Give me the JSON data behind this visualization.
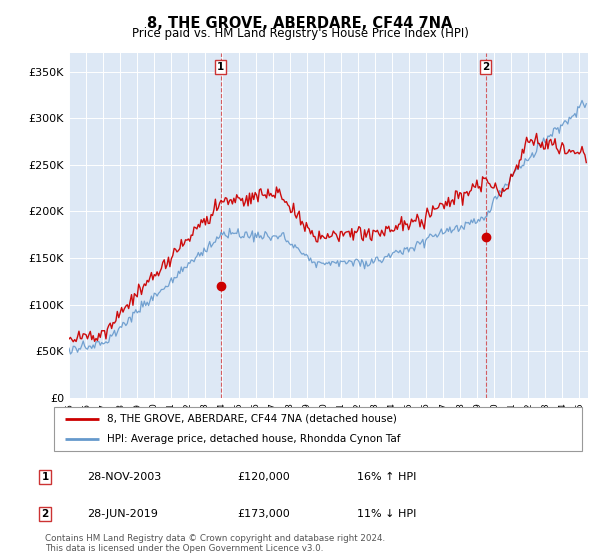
{
  "title": "8, THE GROVE, ABERDARE, CF44 7NA",
  "subtitle": "Price paid vs. HM Land Registry's House Price Index (HPI)",
  "ylabel_ticks": [
    "£0",
    "£50K",
    "£100K",
    "£150K",
    "£200K",
    "£250K",
    "£300K",
    "£350K"
  ],
  "ytick_values": [
    0,
    50000,
    100000,
    150000,
    200000,
    250000,
    300000,
    350000
  ],
  "ylim": [
    0,
    370000
  ],
  "xlim_start": 1995.0,
  "xlim_end": 2025.5,
  "sale1_date": 2003.91,
  "sale1_price": 120000,
  "sale1_label": "1",
  "sale2_date": 2019.49,
  "sale2_price": 173000,
  "sale2_label": "2",
  "red_line_color": "#cc0000",
  "blue_line_color": "#6699cc",
  "dashed_vline_color": "#cc0000",
  "legend_label_red": "8, THE GROVE, ABERDARE, CF44 7NA (detached house)",
  "legend_label_blue": "HPI: Average price, detached house, Rhondda Cynon Taf",
  "annotation1_date": "28-NOV-2003",
  "annotation1_price": "£120,000",
  "annotation1_hpi": "16% ↑ HPI",
  "annotation2_date": "28-JUN-2019",
  "annotation2_price": "£173,000",
  "annotation2_hpi": "11% ↓ HPI",
  "footer": "Contains HM Land Registry data © Crown copyright and database right 2024.\nThis data is licensed under the Open Government Licence v3.0.",
  "background_color": "#ffffff",
  "plot_bg_color": "#dde8f5"
}
